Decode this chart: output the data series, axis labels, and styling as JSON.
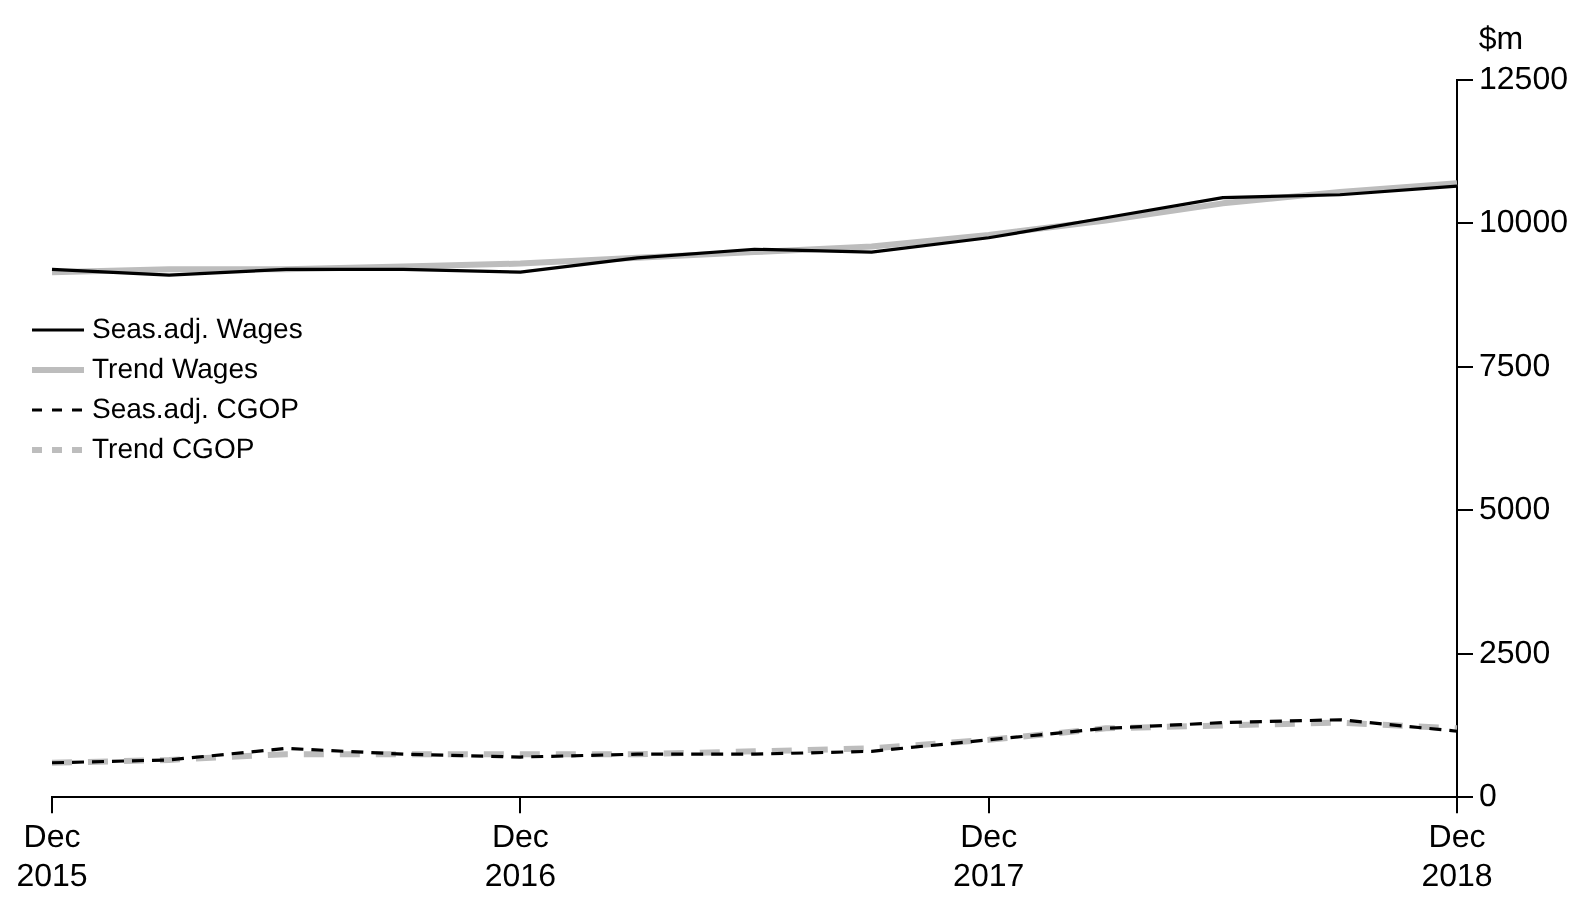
{
  "chart_data": {
    "type": "line",
    "ylabel": "$m",
    "categories": [
      "Dec\n2015",
      null,
      null,
      null,
      "Dec\n2016",
      null,
      null,
      null,
      "Dec\n2017",
      null,
      null,
      null,
      "Dec\n2018"
    ],
    "series": [
      {
        "name": "Seas.adj. Wages",
        "color": "#000000",
        "line_style": "solid",
        "values": [
          9200,
          9100,
          9200,
          9200,
          9150,
          9400,
          9550,
          9500,
          9750,
          10100,
          10450,
          10500,
          10650
        ]
      },
      {
        "name": "Trend Wages",
        "color": "#bdbdbd",
        "line_style": "solid",
        "values": [
          9150,
          9200,
          9200,
          9250,
          9300,
          9400,
          9500,
          9600,
          9800,
          10050,
          10350,
          10550,
          10700
        ]
      },
      {
        "name": "Seas.adj. CGOP",
        "color": "#000000",
        "line_style": "dashed",
        "values": [
          600,
          650,
          850,
          750,
          700,
          750,
          750,
          800,
          1000,
          1200,
          1300,
          1350,
          1150
        ]
      },
      {
        "name": "Trend CGOP",
        "color": "#bdbdbd",
        "line_style": "dashed",
        "values": [
          600,
          650,
          750,
          750,
          750,
          750,
          800,
          850,
          1000,
          1200,
          1250,
          1300,
          1200
        ]
      }
    ],
    "ylim": [
      0,
      12500
    ],
    "yticks": [
      0,
      2500,
      5000,
      7500,
      10000,
      12500
    ],
    "grid": false,
    "legend": "left",
    "marker": "none"
  }
}
